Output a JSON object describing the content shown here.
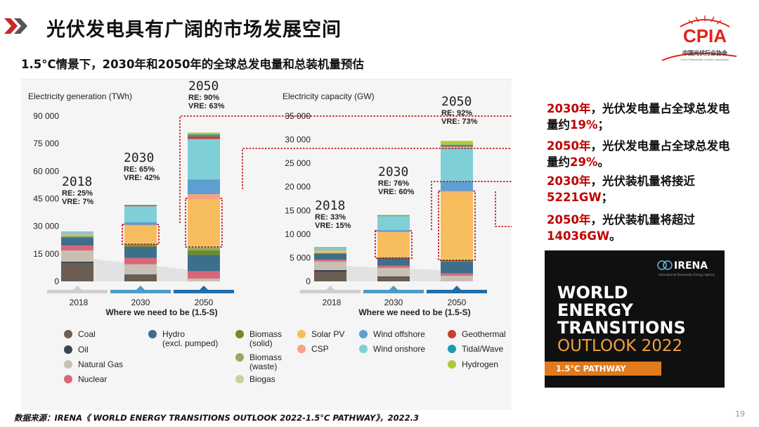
{
  "page": {
    "title": "光伏发电具有广阔的市场发展空间",
    "subtitle": "1.5°C情景下，2030年和2050年的全球总发电量和总装机量预估",
    "source": "数据来源：IRENA《 WORLD ENERGY TRANSITIONS OUTLOOK 2022-1.5°C PATHWAY》，2022.3",
    "page_number": "19"
  },
  "logo": {
    "text": "CPIA",
    "cn": "中国光伏行业协会",
    "en": "China Photovoltaic Industry Association"
  },
  "callouts": [
    {
      "pre": "2030年",
      "mid": "，光伏发电量占全球总发电量约",
      "val": "19%",
      "post": "；"
    },
    {
      "pre": "2050年",
      "mid": "，光伏发电量占全球总发电量约",
      "val": "29%",
      "post": "。"
    },
    {
      "pre": "2030年",
      "mid": "，光伏装机量将接近",
      "val": "5221GW",
      "post": "；"
    },
    {
      "pre": "2050年",
      "mid": "，光伏装机量将超过",
      "val": "14036GW",
      "post": "。"
    }
  ],
  "report": {
    "org": "IRENA",
    "org_sub": "International Renewable Energy Agency",
    "line1": "WORLD",
    "line2": "ENERGY",
    "line3": "TRANSITIONS",
    "line4": "OUTLOOK 2022",
    "badge": "1.5°C PATHWAY"
  },
  "legend": [
    {
      "name": "Coal",
      "color": "#6b5d52"
    },
    {
      "name": "Oil",
      "color": "#3c4350"
    },
    {
      "name": "Natural Gas",
      "color": "#c9c0b3"
    },
    {
      "name": "Nuclear",
      "color": "#d9677a"
    },
    {
      "name": "Hydro\n(excl. pumped)",
      "color": "#3d6f8c"
    },
    {
      "name": "Biomass\n(solid)",
      "color": "#6f8b2a"
    },
    {
      "name": "Biomass\n(waste)",
      "color": "#93ae5a"
    },
    {
      "name": "Biogas",
      "color": "#c4d49a"
    },
    {
      "name": "Solar PV",
      "color": "#f7bd5d"
    },
    {
      "name": "CSP",
      "color": "#f3a484"
    },
    {
      "name": "Wind offshore",
      "color": "#5d9fd0"
    },
    {
      "name": "Wind onshore",
      "color": "#7fcfd8"
    },
    {
      "name": "Geothermal",
      "color": "#c8402f"
    },
    {
      "name": "Tidal/Wave",
      "color": "#1f9bb0"
    },
    {
      "name": "Hydrogen",
      "color": "#b3c934"
    }
  ],
  "chart_data": [
    {
      "type": "bar",
      "stacked": true,
      "title": "Electricity generation (TWh)",
      "xlabel": "Where we need to be (1.5-S)",
      "categories": [
        "2018",
        "2030",
        "2050"
      ],
      "ylim": [
        0,
        90000
      ],
      "yticks": [
        0,
        15000,
        30000,
        45000,
        60000,
        75000,
        90000
      ],
      "ytick_labels": [
        "0",
        "15 000",
        "30 000",
        "45 000",
        "60 000",
        "75 000",
        "90 000"
      ],
      "annotations": [
        {
          "year": "2018",
          "re": "RE: 25%",
          "vre": "VRE: 7%"
        },
        {
          "year": "2030",
          "re": "RE: 65%",
          "vre": "VRE: 42%"
        },
        {
          "year": "2050",
          "re": "RE: 90%",
          "vre": "VRE: 63%"
        }
      ],
      "highlight_series": "Solar PV",
      "series": [
        {
          "name": "Coal",
          "values": [
            10000,
            3500,
            0
          ]
        },
        {
          "name": "Oil",
          "values": [
            800,
            300,
            0
          ]
        },
        {
          "name": "Natural Gas",
          "values": [
            6000,
            5500,
            1500
          ]
        },
        {
          "name": "Nuclear",
          "values": [
            2700,
            3500,
            4000
          ]
        },
        {
          "name": "Hydro\n(excl. pumped)",
          "values": [
            4300,
            6000,
            9000
          ]
        },
        {
          "name": "Biomass\n(solid)",
          "values": [
            500,
            1000,
            2500
          ]
        },
        {
          "name": "Biomass\n(waste)",
          "values": [
            400,
            700,
            1500
          ]
        },
        {
          "name": "Biogas",
          "values": [
            200,
            500,
            1000
          ]
        },
        {
          "name": "Solar PV",
          "values": [
            600,
            9200,
            25000
          ]
        },
        {
          "name": "CSP",
          "values": [
            100,
            600,
            3000
          ]
        },
        {
          "name": "Wind offshore",
          "values": [
            100,
            1500,
            8000
          ]
        },
        {
          "name": "Wind onshore",
          "values": [
            1200,
            8600,
            22000
          ]
        },
        {
          "name": "Geothermal",
          "values": [
            100,
            500,
            1500
          ]
        },
        {
          "name": "Tidal/Wave",
          "values": [
            0,
            100,
            1000
          ]
        },
        {
          "name": "Hydrogen",
          "values": [
            0,
            200,
            1000
          ]
        }
      ]
    },
    {
      "type": "bar",
      "stacked": true,
      "title": "Electricity capacity (GW)",
      "xlabel": "Where we need to be (1.5-S)",
      "categories": [
        "2018",
        "2030",
        "2050"
      ],
      "ylim": [
        0,
        35000
      ],
      "yticks": [
        0,
        5000,
        10000,
        15000,
        20000,
        25000,
        30000,
        35000
      ],
      "ytick_labels": [
        "0",
        "5 000",
        "10 000",
        "15 000",
        "20 000",
        "25 000",
        "30 000",
        "35 000"
      ],
      "annotations": [
        {
          "year": "2018",
          "re": "RE: 33%",
          "vre": "VRE: 15%"
        },
        {
          "year": "2030",
          "re": "RE: 76%",
          "vre": "VRE: 60%"
        },
        {
          "year": "2050",
          "re": "RE: 92%",
          "vre": "VRE: 73%"
        }
      ],
      "highlight_series": "Solar PV",
      "series": [
        {
          "name": "Coal",
          "values": [
            2000,
            900,
            0
          ]
        },
        {
          "name": "Oil",
          "values": [
            400,
            150,
            0
          ]
        },
        {
          "name": "Natural Gas",
          "values": [
            1800,
            1800,
            1200
          ]
        },
        {
          "name": "Nuclear",
          "values": [
            400,
            450,
            500
          ]
        },
        {
          "name": "Hydro\n(excl. pumped)",
          "values": [
            1300,
            1600,
            2500
          ]
        },
        {
          "name": "Biomass\n(solid)",
          "values": [
            100,
            150,
            300
          ]
        },
        {
          "name": "Biomass\n(waste)",
          "values": [
            50,
            80,
            150
          ]
        },
        {
          "name": "Biogas",
          "values": [
            50,
            70,
            150
          ]
        },
        {
          "name": "Solar PV",
          "values": [
            500,
            5221,
            14036
          ]
        },
        {
          "name": "CSP",
          "values": [
            10,
            50,
            300
          ]
        },
        {
          "name": "Wind offshore",
          "values": [
            30,
            380,
            2000
          ]
        },
        {
          "name": "Wind onshore",
          "values": [
            550,
            3000,
            7400
          ]
        },
        {
          "name": "Geothermal",
          "values": [
            15,
            60,
            200
          ]
        },
        {
          "name": "Tidal/Wave",
          "values": [
            5,
            20,
            200
          ]
        },
        {
          "name": "Hydrogen",
          "values": [
            0,
            150,
            800
          ]
        }
      ]
    }
  ]
}
